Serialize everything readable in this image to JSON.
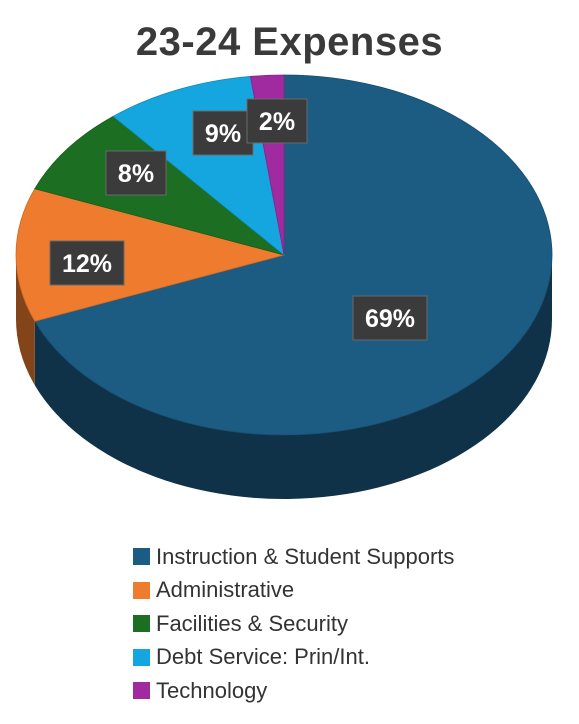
{
  "chart_data": {
    "type": "pie",
    "title": "23-24 Expenses",
    "slices": [
      {
        "label": "Instruction & Student Supports",
        "value": 69,
        "data_label": "69%",
        "color": "#1c5b82"
      },
      {
        "label": "Administrative",
        "value": 12,
        "data_label": "12%",
        "color": "#ef7b2e"
      },
      {
        "label": "Facilities & Security",
        "value": 8,
        "data_label": "8%",
        "color": "#1b6e22"
      },
      {
        "label": "Debt Service: Prin/Int.",
        "value": 9,
        "data_label": "9%",
        "color": "#15a6e0"
      },
      {
        "label": "Technology",
        "value": 2,
        "data_label": "2%",
        "color": "#a02a9f"
      }
    ],
    "legend_position": "bottom",
    "style": "3d"
  }
}
